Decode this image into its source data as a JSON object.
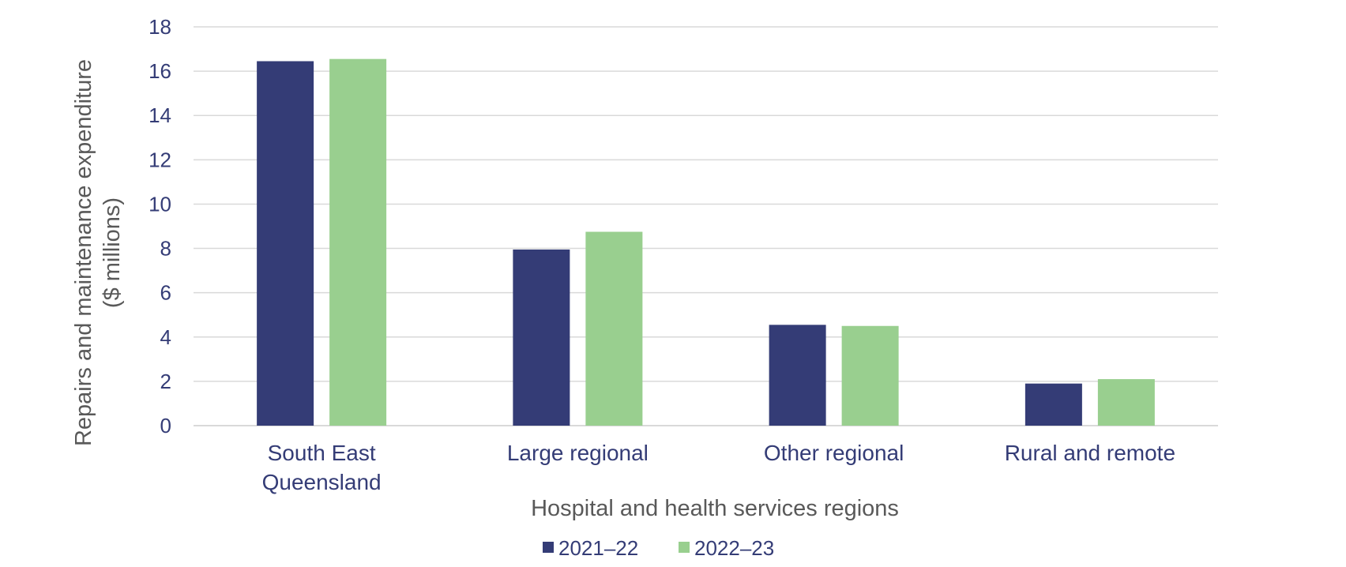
{
  "chart_data": {
    "type": "bar",
    "categories": [
      [
        "South East",
        "Queensland"
      ],
      [
        "Large regional"
      ],
      [
        "Other regional"
      ],
      [
        "Rural and remote"
      ]
    ],
    "series": [
      {
        "name": "2021–22",
        "color": "#343c76",
        "values": [
          16.45,
          7.95,
          4.55,
          1.9
        ]
      },
      {
        "name": "2022–23",
        "color": "#99cf8f",
        "values": [
          16.55,
          8.75,
          4.5,
          2.1
        ]
      }
    ],
    "xlabel": "Hospital and health services regions",
    "ylabel": [
      "Repairs and maintenance expenditure",
      "($ millions)"
    ],
    "ylim": [
      0,
      18
    ],
    "yticks": [
      0,
      2,
      4,
      6,
      8,
      10,
      12,
      14,
      16,
      18
    ],
    "grid": true,
    "legend": "bottom-center"
  }
}
